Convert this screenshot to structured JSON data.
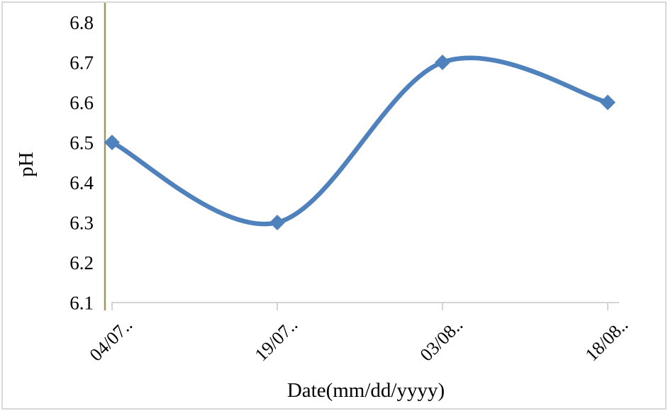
{
  "chart_data": {
    "type": "line",
    "smooth": true,
    "title": "",
    "xlabel": "Date(mm/dd/yyyy)",
    "ylabel": "pH",
    "categories": [
      "04/07..",
      "19/07..",
      "03/08..",
      "18/08.."
    ],
    "values": [
      6.5,
      6.3,
      6.7,
      6.6
    ],
    "ylim": [
      6.1,
      6.8
    ],
    "ytick_step": 0.1,
    "yticks": [
      "6.1",
      "6.2",
      "6.3",
      "6.4",
      "6.5",
      "6.6",
      "6.7",
      "6.8"
    ],
    "grid": false,
    "legend": false,
    "marker": "diamond",
    "colors": {
      "line": "#4F81BD",
      "marker": "#4F81BD",
      "y_axis_line": "#9e9760",
      "x_axis_line": "#d3d3d3",
      "tick_text": "#000000",
      "frame_border": "#d9d9d9",
      "background": "#ffffff"
    }
  }
}
